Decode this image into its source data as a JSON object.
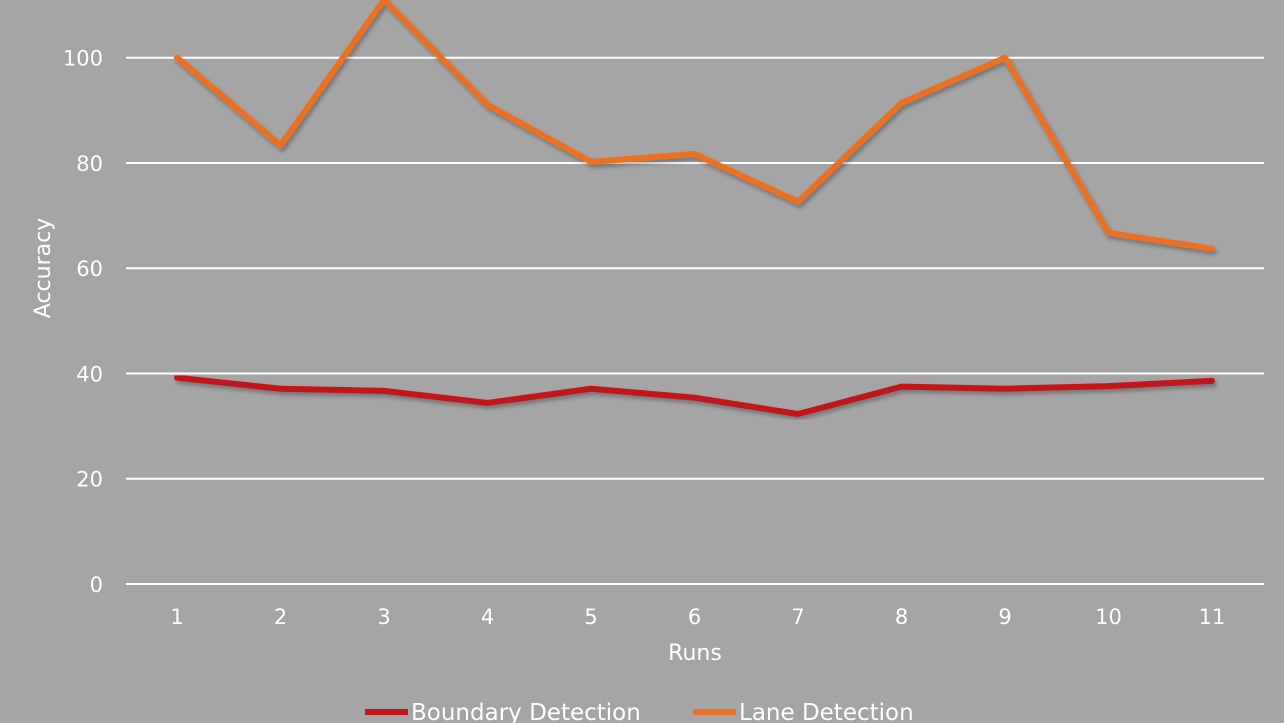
{
  "chart_data": {
    "type": "line",
    "title": "",
    "xlabel": "Runs",
    "ylabel": "Accuracy",
    "categories": [
      "1",
      "2",
      "3",
      "4",
      "5",
      "6",
      "7",
      "8",
      "9",
      "10",
      "11"
    ],
    "ylim": [
      0,
      100
    ],
    "yticks": [
      "0",
      "20",
      "40",
      "60",
      "80",
      "100"
    ],
    "grid": true,
    "legend_position": "bottom",
    "series": [
      {
        "name": "Boundary Detection",
        "color": "#c0171c",
        "values": [
          39.2,
          37.1,
          36.7,
          34.4,
          37.1,
          35.4,
          32.3,
          37.5,
          37.1,
          37.6,
          38.6
        ]
      },
      {
        "name": "Lane Detection",
        "color": "#ec7024",
        "values": [
          100,
          83.3,
          111,
          91,
          80.2,
          81.7,
          72.6,
          91.4,
          100,
          66.7,
          63.7
        ]
      }
    ]
  }
}
